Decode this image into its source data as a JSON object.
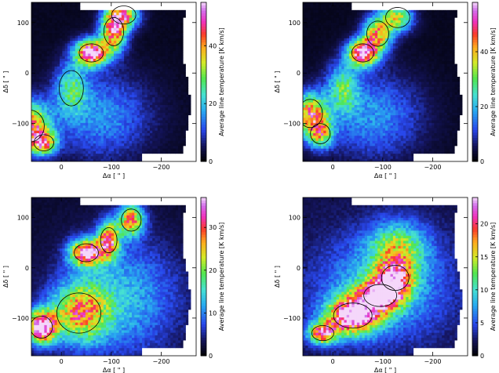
{
  "chart_data": [
    {
      "type": "heatmap",
      "xlabel": "Δα [ \" ]",
      "ylabel": "Δδ [ \" ]",
      "colorbar_label": "Average line temperature [K km/s]",
      "xlim": [
        60,
        -270
      ],
      "ylim": [
        -175,
        140
      ],
      "x_ticks": [
        0,
        -100,
        -200
      ],
      "x_tick_labels": [
        "0",
        "−100",
        "−200"
      ],
      "y_ticks": [
        100,
        0,
        -100
      ],
      "y_tick_labels": [
        "100",
        "0",
        "−100"
      ],
      "colorbar_range": [
        0,
        55
      ],
      "colorbar_ticks": [
        0,
        20,
        40
      ],
      "contour_levels": [
        8,
        20,
        35
      ],
      "peak_value": 55,
      "features": [
        {
          "x": 65,
          "y": -105,
          "sx": 28,
          "sy": 32,
          "amp": 43
        },
        {
          "x": 35,
          "y": -138,
          "sx": 18,
          "sy": 16,
          "amp": 35
        },
        {
          "x": -60,
          "y": 40,
          "sx": 22,
          "sy": 18,
          "amp": 55
        },
        {
          "x": -105,
          "y": 82,
          "sx": 18,
          "sy": 28,
          "amp": 42
        },
        {
          "x": -125,
          "y": 115,
          "sx": 22,
          "sy": 18,
          "amp": 35
        },
        {
          "x": -20,
          "y": -30,
          "sx": 22,
          "sy": 35,
          "amp": 20
        },
        {
          "x": -80,
          "y": -85,
          "sx": 70,
          "sy": 60,
          "amp": 14
        }
      ]
    },
    {
      "type": "heatmap",
      "xlabel": "Δα [ \" ]",
      "ylabel": "Δδ [ \" ]",
      "colorbar_label": "Average line temperature [K km/s]",
      "xlim": [
        60,
        -270
      ],
      "ylim": [
        -175,
        140
      ],
      "x_ticks": [
        0,
        -100,
        -200
      ],
      "x_tick_labels": [
        "0",
        "−100",
        "−200"
      ],
      "y_ticks": [
        100,
        0,
        -100
      ],
      "y_tick_labels": [
        "100",
        "0",
        "−100"
      ],
      "colorbar_range": [
        0,
        58
      ],
      "colorbar_ticks": [
        0,
        20,
        40
      ],
      "contour_levels": [
        10,
        25,
        40
      ],
      "peak_value": 58,
      "features": [
        {
          "x": 45,
          "y": -80,
          "sx": 22,
          "sy": 28,
          "amp": 40
        },
        {
          "x": 25,
          "y": -120,
          "sx": 18,
          "sy": 20,
          "amp": 32
        },
        {
          "x": -60,
          "y": 40,
          "sx": 20,
          "sy": 18,
          "amp": 58
        },
        {
          "x": -90,
          "y": 78,
          "sx": 20,
          "sy": 25,
          "amp": 38
        },
        {
          "x": -130,
          "y": 110,
          "sx": 22,
          "sy": 20,
          "amp": 32
        },
        {
          "x": -20,
          "y": -30,
          "sx": 22,
          "sy": 35,
          "amp": 22
        },
        {
          "x": -80,
          "y": -85,
          "sx": 70,
          "sy": 60,
          "amp": 15
        }
      ]
    },
    {
      "type": "heatmap",
      "xlabel": "Δα [ \" ]",
      "ylabel": "Δδ [ \" ]",
      "colorbar_label": "Average line temperature [K km/s]",
      "xlim": [
        60,
        -270
      ],
      "ylim": [
        -175,
        140
      ],
      "x_ticks": [
        0,
        -100,
        -200
      ],
      "x_tick_labels": [
        "0",
        "−100",
        "−200"
      ],
      "y_ticks": [
        100,
        0,
        -100
      ],
      "y_tick_labels": [
        "100",
        "0",
        "−100"
      ],
      "colorbar_range": [
        0,
        37
      ],
      "colorbar_ticks": [
        0,
        10,
        20,
        30
      ],
      "contour_levels": [
        8,
        18,
        28
      ],
      "peak_value": 37,
      "features": [
        {
          "x": 40,
          "y": -118,
          "sx": 20,
          "sy": 22,
          "amp": 37
        },
        {
          "x": -35,
          "y": -90,
          "sx": 40,
          "sy": 40,
          "amp": 22
        },
        {
          "x": -50,
          "y": 30,
          "sx": 22,
          "sy": 18,
          "amp": 34
        },
        {
          "x": -95,
          "y": 55,
          "sx": 15,
          "sy": 25,
          "amp": 28
        },
        {
          "x": -140,
          "y": 95,
          "sx": 18,
          "sy": 22,
          "amp": 25
        },
        {
          "x": -120,
          "y": -60,
          "sx": 80,
          "sy": 80,
          "amp": 11
        }
      ]
    },
    {
      "type": "heatmap",
      "xlabel": "Δα [ \" ]",
      "ylabel": "Δδ [ \" ]",
      "colorbar_label": "Average line temperature [K km/s]",
      "xlim": [
        60,
        -270
      ],
      "ylim": [
        -175,
        140
      ],
      "x_ticks": [
        0,
        -100,
        -200
      ],
      "x_tick_labels": [
        "0",
        "−100",
        "−200"
      ],
      "y_ticks": [
        100,
        0,
        -100
      ],
      "y_tick_labels": [
        "100",
        "0",
        "−100"
      ],
      "colorbar_range": [
        0,
        24
      ],
      "colorbar_ticks": [
        0,
        5,
        10,
        15,
        20
      ],
      "contour_levels": [
        6,
        12,
        18
      ],
      "peak_value": 24,
      "features": [
        {
          "x": -40,
          "y": -95,
          "sx": 35,
          "sy": 25,
          "amp": 23
        },
        {
          "x": -95,
          "y": -55,
          "sx": 30,
          "sy": 22,
          "amp": 20
        },
        {
          "x": -125,
          "y": -20,
          "sx": 25,
          "sy": 25,
          "amp": 14
        },
        {
          "x": 20,
          "y": -130,
          "sx": 20,
          "sy": 15,
          "amp": 18
        },
        {
          "x": -130,
          "y": 40,
          "sx": 40,
          "sy": 35,
          "amp": 10
        },
        {
          "x": -100,
          "y": -40,
          "sx": 90,
          "sy": 70,
          "amp": 7
        }
      ]
    }
  ]
}
